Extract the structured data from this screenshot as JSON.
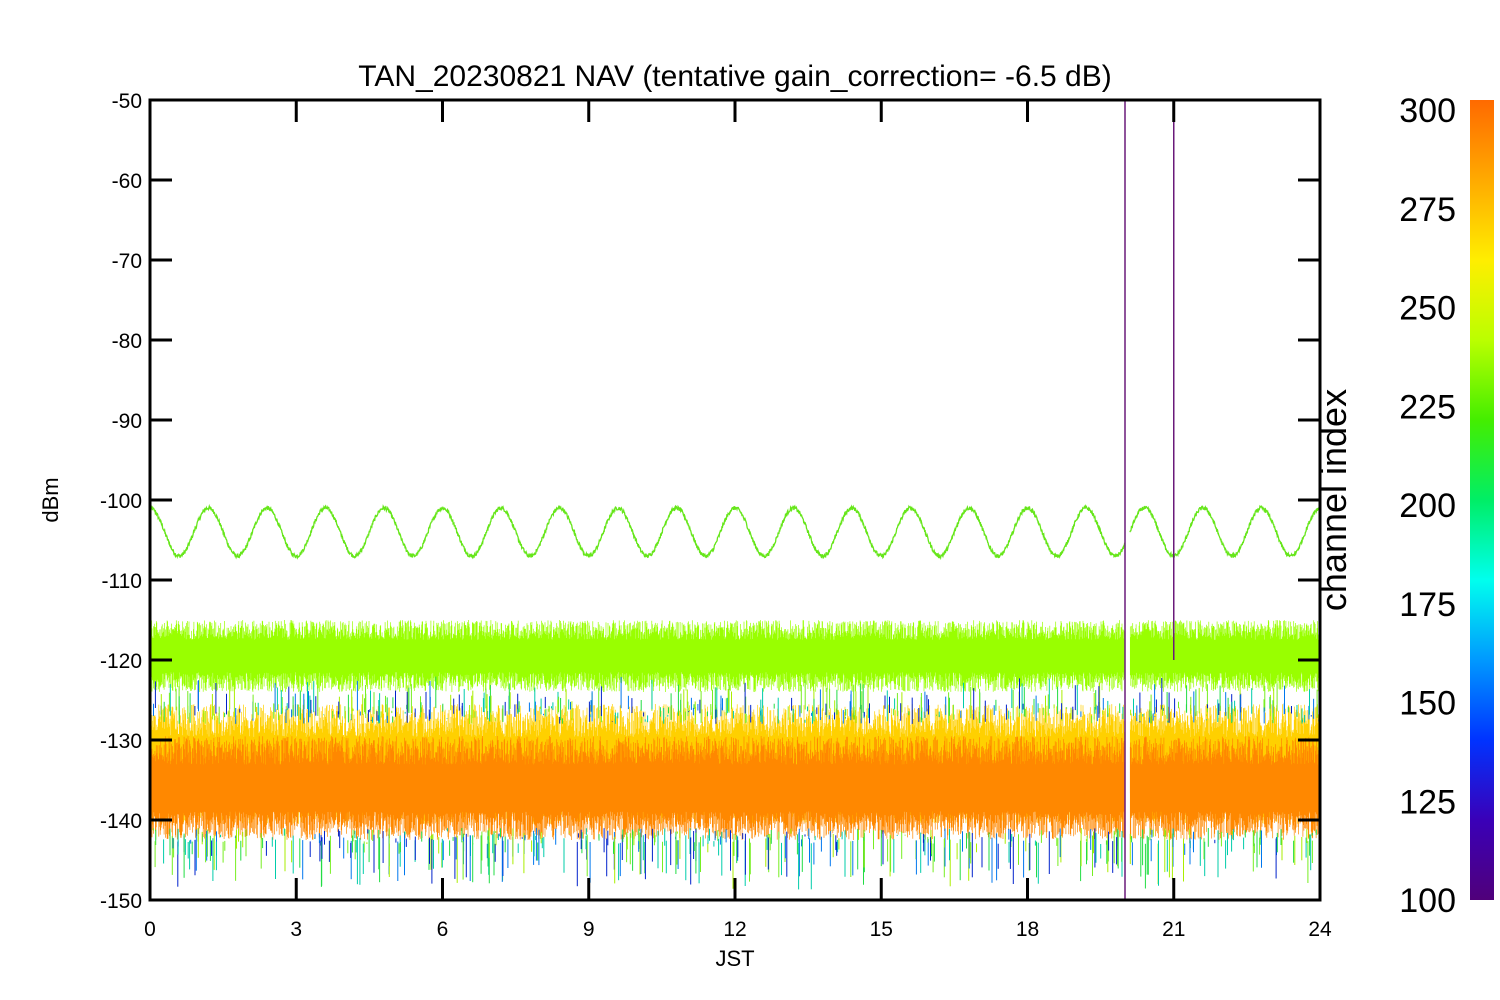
{
  "chart_data": {
    "type": "line",
    "title": "TAN_20230821 NAV (tentative gain_correction= -6.5 dB)",
    "xlabel": "JST",
    "ylabel": "dBm",
    "xlim": [
      0,
      24
    ],
    "ylim": [
      -150,
      -50
    ],
    "x_ticks": [
      "0",
      "3",
      "6",
      "9",
      "12",
      "15",
      "18",
      "21",
      "24"
    ],
    "y_ticks": [
      "-50",
      "-60",
      "-70",
      "-80",
      "-90",
      "-100",
      "-110",
      "-120",
      "-130",
      "-140",
      "-150"
    ],
    "grid": false,
    "colorbar": {
      "label": "channel index",
      "range": [
        100,
        300
      ],
      "ticks": [
        "300",
        "275",
        "250",
        "225",
        "200",
        "175",
        "150",
        "125",
        "100"
      ],
      "colormap": [
        "#50007a",
        "#3a00b8",
        "#0033ff",
        "#0099ff",
        "#00ffee",
        "#00ee66",
        "#44ee00",
        "#bbff00",
        "#ffee00",
        "#ffaa00",
        "#ff6a00"
      ]
    },
    "series": [
      {
        "channel_index": 240,
        "color": "#66e61a",
        "pattern": "sinusoid",
        "y_min": -107,
        "y_max": -101,
        "period_hours": 1.2
      },
      {
        "channel_index": 255,
        "color": "#99ff00",
        "pattern": "noise",
        "y_center": -119.5,
        "y_low": -124,
        "y_high": -115
      },
      {
        "channel_index": 265,
        "color": "#ffd000",
        "pattern": "noise",
        "y_center": -133,
        "y_low": -140,
        "y_high": -125
      },
      {
        "channel_index": 290,
        "color": "#ff8800",
        "pattern": "noise",
        "y_center": -136,
        "y_low": -142,
        "y_high": -129
      }
    ],
    "data_gap": {
      "x_start": 20.0,
      "x_end": 20.1
    },
    "spikes": [
      {
        "x": 20.0,
        "y_top": -50,
        "y_bottom": -150,
        "color": "#6a1a7a"
      },
      {
        "x": 21.0,
        "y_top": -50,
        "y_bottom": -120,
        "color": "#6a1a7a"
      }
    ]
  }
}
